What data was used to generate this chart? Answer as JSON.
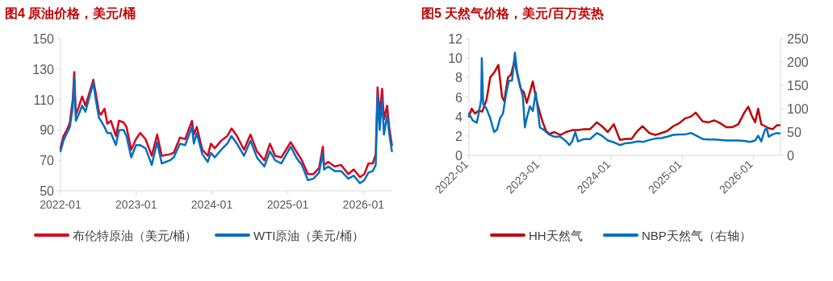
{
  "chart_data": [
    {
      "type": "line",
      "title": "图4  原油价格，美元/桶",
      "legend": "bottom",
      "xlim": [
        "2022-01-01",
        "2026-05-20"
      ],
      "xticks": [
        "2022-01",
        "2023-01",
        "2024-01",
        "2025-01",
        "2026-01"
      ],
      "ylim": [
        50,
        150
      ],
      "yticks": [
        50,
        70,
        90,
        110,
        130,
        150
      ],
      "x": [
        "2022-01-01",
        "2022-01-15",
        "2022-02-01",
        "2022-02-15",
        "2022-03-01",
        "2022-03-08",
        "2022-03-16",
        "2022-04-01",
        "2022-04-15",
        "2022-05-01",
        "2022-05-15",
        "2022-06-08",
        "2022-06-20",
        "2022-07-05",
        "2022-07-15",
        "2022-08-01",
        "2022-08-15",
        "2022-09-01",
        "2022-09-25",
        "2022-10-10",
        "2022-11-01",
        "2022-11-15",
        "2022-12-08",
        "2022-12-31",
        "2023-01-20",
        "2023-02-15",
        "2023-03-17",
        "2023-04-12",
        "2023-05-04",
        "2023-06-12",
        "2023-07-01",
        "2023-07-31",
        "2023-08-25",
        "2023-09-27",
        "2023-10-06",
        "2023-10-20",
        "2023-11-16",
        "2023-12-12",
        "2023-12-27",
        "2024-01-15",
        "2024-02-15",
        "2024-03-15",
        "2024-04-05",
        "2024-05-01",
        "2024-06-04",
        "2024-07-05",
        "2024-08-05",
        "2024-09-10",
        "2024-10-07",
        "2024-11-01",
        "2024-12-01",
        "2025-01-15",
        "2025-02-15",
        "2025-03-10",
        "2025-04-08",
        "2025-05-05",
        "2025-06-01",
        "2025-06-19",
        "2025-06-25",
        "2025-07-15",
        "2025-08-15",
        "2025-09-15",
        "2025-10-20",
        "2025-11-15",
        "2025-12-15",
        "2026-01-05",
        "2026-01-25",
        "2026-02-15",
        "2026-03-01",
        "2026-03-10",
        "2026-03-20",
        "2026-04-01",
        "2026-04-10",
        "2026-04-25",
        "2026-05-05",
        "2026-05-18"
      ],
      "series": [
        {
          "name": "布伦特原油（美元/桶）",
          "color": "#d7001f",
          "values": [
            78,
            86,
            90,
            95,
            110,
            128,
            100,
            106,
            112,
            106,
            112,
            123,
            114,
            102,
            100,
            104,
            94,
            96,
            86,
            96,
            95,
            92,
            77,
            84,
            88,
            84,
            73,
            87,
            73,
            74,
            75,
            85,
            84,
            96,
            87,
            92,
            77,
            73,
            81,
            78,
            83,
            86,
            91,
            86,
            77,
            87,
            76,
            70,
            81,
            73,
            72,
            82,
            75,
            70,
            61,
            61,
            65,
            79,
            67,
            69,
            66,
            67,
            61,
            64,
            59,
            61,
            68,
            68,
            74,
            118,
            100,
            117,
            97,
            106,
            92,
            80
          ]
        },
        {
          "name": "WTI原油（美元/桶）",
          "color": "#0070c0",
          "values": [
            76,
            83,
            88,
            92,
            105,
            124,
            96,
            101,
            106,
            102,
            109,
            121,
            110,
            98,
            96,
            92,
            88,
            88,
            80,
            90,
            90,
            86,
            72,
            80,
            80,
            78,
            67,
            82,
            68,
            70,
            72,
            81,
            80,
            92,
            81,
            88,
            74,
            69,
            75,
            72,
            77,
            81,
            86,
            81,
            73,
            83,
            72,
            66,
            76,
            70,
            68,
            79,
            71,
            67,
            57,
            58,
            62,
            75,
            64,
            66,
            63,
            63,
            58,
            60,
            55,
            57,
            62,
            63,
            67,
            113,
            90,
            110,
            87,
            100,
            88,
            76
          ]
        }
      ]
    },
    {
      "type": "line",
      "title": "图5  天然气价格，美元/百万英热",
      "legend": "bottom",
      "xlim": [
        "2022-01-01",
        "2026-05-20"
      ],
      "xticks": [
        "2022-01",
        "2023-01",
        "2024-01",
        "2025-01",
        "2026-01"
      ],
      "ylim": [
        0,
        12
      ],
      "yticks": [
        0,
        2,
        4,
        6,
        8,
        10,
        12
      ],
      "y2lim": [
        0,
        250
      ],
      "y2ticks": [
        0,
        50,
        100,
        150,
        200,
        250
      ],
      "series": [
        {
          "name": "HH天然气",
          "color": "#c00000",
          "x": [
            "2022-01-01",
            "2022-01-15",
            "2022-02-01",
            "2022-02-20",
            "2022-03-10",
            "2022-04-01",
            "2022-04-20",
            "2022-05-10",
            "2022-06-01",
            "2022-06-20",
            "2022-07-01",
            "2022-07-20",
            "2022-08-05",
            "2022-08-22",
            "2022-09-10",
            "2022-09-25",
            "2022-10-10",
            "2022-10-25",
            "2022-11-10",
            "2022-11-25",
            "2022-12-10",
            "2022-12-31",
            "2023-01-15",
            "2023-02-01",
            "2023-02-20",
            "2023-03-15",
            "2023-04-15",
            "2023-05-15",
            "2023-06-15",
            "2023-07-15",
            "2023-08-15",
            "2023-09-15",
            "2023-10-20",
            "2023-11-15",
            "2023-12-15",
            "2024-01-15",
            "2024-02-15",
            "2024-03-15",
            "2024-04-15",
            "2024-05-15",
            "2024-06-10",
            "2024-07-15",
            "2024-08-15",
            "2024-09-15",
            "2024-10-15",
            "2024-11-15",
            "2024-12-15",
            "2025-01-15",
            "2025-02-15",
            "2025-03-10",
            "2025-04-15",
            "2025-05-15",
            "2025-06-15",
            "2025-07-15",
            "2025-08-15",
            "2025-09-15",
            "2025-10-15",
            "2025-11-15",
            "2025-12-05",
            "2025-12-25",
            "2026-01-10",
            "2026-01-25",
            "2026-02-10",
            "2026-03-01",
            "2026-03-20",
            "2026-04-10",
            "2026-05-01",
            "2026-05-15"
          ],
          "values": [
            4.0,
            4.8,
            4.3,
            4.6,
            4.5,
            5.7,
            8.0,
            8.5,
            9.3,
            6.0,
            5.6,
            8.0,
            8.3,
            9.7,
            8.0,
            6.8,
            6.5,
            5.4,
            6.5,
            7.6,
            6.0,
            4.4,
            3.4,
            2.5,
            2.2,
            2.4,
            2.1,
            2.4,
            2.6,
            2.6,
            2.7,
            2.7,
            3.4,
            3.0,
            2.4,
            3.2,
            1.6,
            1.7,
            1.7,
            2.5,
            3.0,
            2.3,
            2.1,
            2.3,
            2.5,
            3.0,
            3.3,
            3.8,
            4.0,
            4.4,
            3.5,
            3.4,
            3.6,
            3.3,
            2.9,
            2.9,
            3.2,
            4.4,
            5.0,
            4.0,
            3.4,
            4.8,
            3.2,
            3.0,
            2.8,
            2.7,
            3.1,
            3.1
          ]
        },
        {
          "name": "NBP天然气（右轴）",
          "color": "#0070c0",
          "axis": "y2",
          "x": [
            "2022-01-01",
            "2022-01-20",
            "2022-02-10",
            "2022-02-20",
            "2022-03-05",
            "2022-03-08",
            "2022-03-15",
            "2022-04-01",
            "2022-04-20",
            "2022-05-10",
            "2022-05-25",
            "2022-06-10",
            "2022-06-25",
            "2022-07-10",
            "2022-07-25",
            "2022-08-10",
            "2022-08-25",
            "2022-09-05",
            "2022-09-20",
            "2022-10-05",
            "2022-10-15",
            "2022-10-25",
            "2022-11-10",
            "2022-11-25",
            "2022-12-10",
            "2022-12-31",
            "2023-01-20",
            "2023-02-15",
            "2023-03-15",
            "2023-04-15",
            "2023-05-15",
            "2023-06-01",
            "2023-06-15",
            "2023-07-01",
            "2023-07-15",
            "2023-08-15",
            "2023-09-15",
            "2023-10-20",
            "2023-11-15",
            "2023-12-15",
            "2024-01-15",
            "2024-02-15",
            "2024-03-15",
            "2024-04-15",
            "2024-05-15",
            "2024-06-15",
            "2024-07-15",
            "2024-08-15",
            "2024-09-15",
            "2024-10-15",
            "2024-11-15",
            "2024-12-15",
            "2025-01-15",
            "2025-02-15",
            "2025-03-15",
            "2025-04-15",
            "2025-05-15",
            "2025-06-15",
            "2025-07-15",
            "2025-08-15",
            "2025-09-15",
            "2025-10-15",
            "2025-11-15",
            "2025-12-15",
            "2026-01-10",
            "2026-01-25",
            "2026-02-10",
            "2026-03-01",
            "2026-03-10",
            "2026-03-20",
            "2026-04-10",
            "2026-05-01",
            "2026-05-15"
          ],
          "values": [
            90,
            75,
            70,
            90,
            120,
            208,
            110,
            100,
            80,
            50,
            55,
            80,
            90,
            130,
            160,
            160,
            220,
            180,
            150,
            125,
            60,
            80,
            105,
            95,
            135,
            60,
            55,
            45,
            40,
            40,
            30,
            22,
            30,
            50,
            30,
            35,
            35,
            48,
            42,
            32,
            28,
            22,
            26,
            27,
            30,
            29,
            33,
            36,
            37,
            40,
            44,
            45,
            45,
            48,
            42,
            35,
            34,
            34,
            33,
            32,
            32,
            32,
            31,
            29,
            32,
            42,
            30,
            55,
            58,
            40,
            45,
            48,
            47
          ]
        }
      ]
    }
  ]
}
